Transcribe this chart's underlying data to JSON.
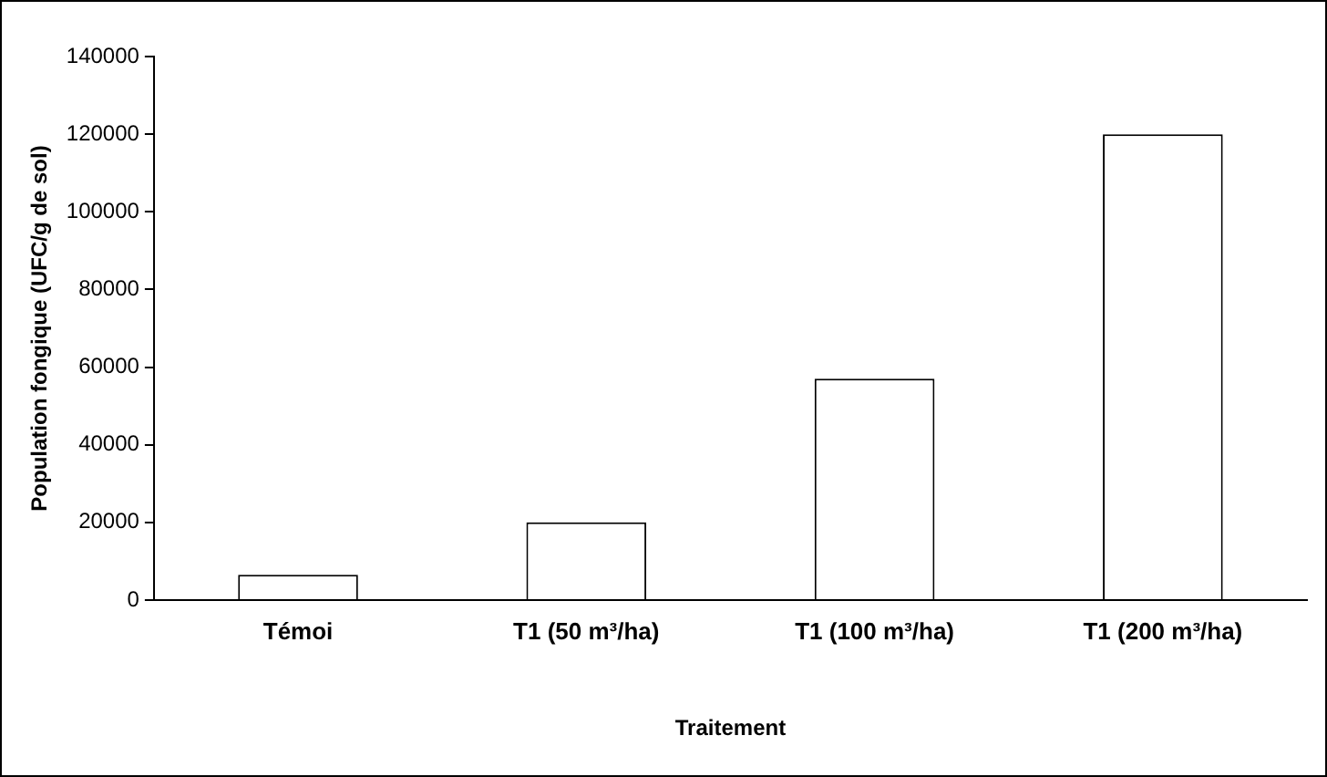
{
  "chart_data": {
    "type": "bar",
    "xlabel": "Traitement",
    "ylabel": "Population fongique (UFC/g de sol)",
    "categories": [
      "Témoi",
      "T1 (50 m³/ha)",
      "T1 (100 m³/ha)",
      "T1 (200 m³/ha)"
    ],
    "values": [
      6500,
      20000,
      57000,
      120000
    ],
    "color": "#ffffff",
    "ylim": [
      0,
      140000
    ],
    "yticks": [
      0,
      20000,
      40000,
      60000,
      80000,
      100000,
      120000,
      140000
    ],
    "grid": false,
    "legend": false
  }
}
